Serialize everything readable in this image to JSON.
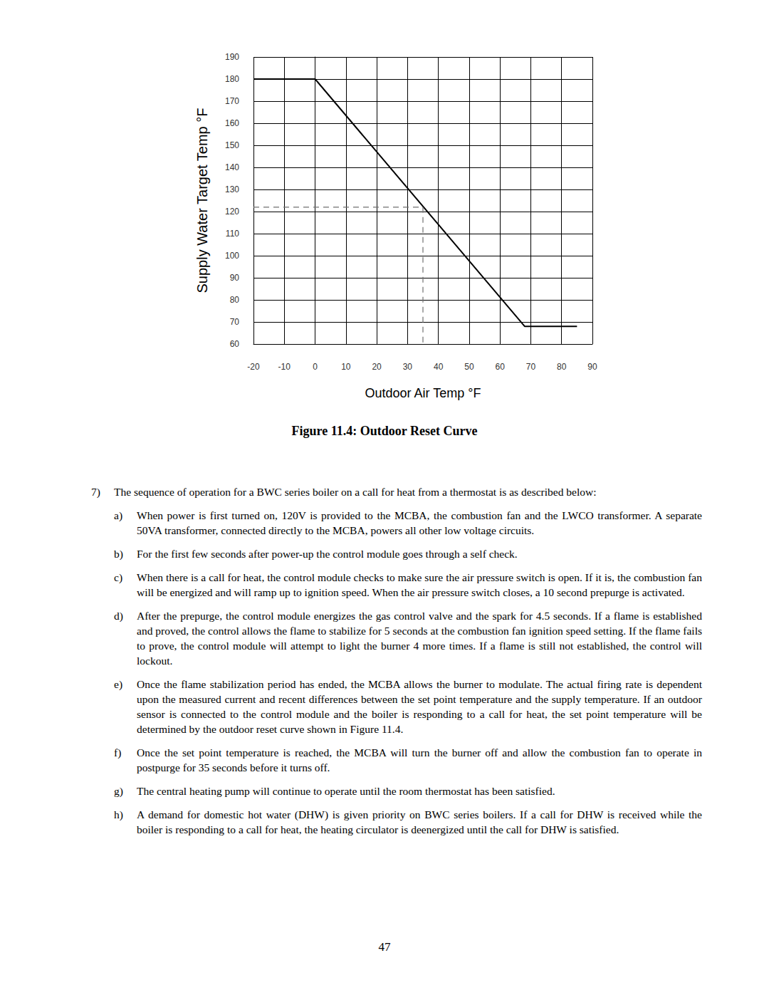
{
  "chart_data": {
    "type": "line",
    "xlabel": "Outdoor Air Temp °F",
    "ylabel": "Supply Water Target Temp °F",
    "xlim": [
      -20,
      90
    ],
    "xticks": [
      -20,
      -10,
      0,
      10,
      20,
      30,
      40,
      50,
      60,
      70,
      80,
      90
    ],
    "ylim": [
      60,
      190
    ],
    "yticks": [
      60,
      70,
      80,
      90,
      100,
      110,
      120,
      130,
      140,
      150,
      160,
      170,
      180,
      190
    ],
    "grid": true,
    "series": [
      {
        "x": [
          -20,
          0,
          68,
          85
        ],
        "values": [
          180,
          180,
          68,
          68
        ],
        "color": "#000000",
        "line_style": "solid"
      },
      {
        "x": [
          -20,
          35,
          35
        ],
        "values": [
          122,
          122,
          60
        ],
        "color": "#707070",
        "line_style": "dashed"
      }
    ]
  },
  "caption": "Figure 11.4:  Outdoor Reset Curve",
  "items": [
    {
      "label": "7)",
      "text": "The sequence of operation for a BWC series boiler on a call for heat from a thermostat is as described below:",
      "subitems": [
        {
          "label": "a)",
          "text": "When power is first turned on, 120V is provided to the MCBA, the combustion fan and the LWCO transformer.  A separate 50VA transformer, connected directly to the MCBA, powers all other low voltage circuits."
        },
        {
          "label": "b)",
          "text": "For the first few seconds after power-up the control module goes through a self check."
        },
        {
          "label": "c)",
          "text": "When there is a call for heat, the control module checks to make sure the air pressure switch is open.  If it is, the combustion fan  will be energized and will ramp up to ignition speed.  When the air pressure switch closes, a 10 second prepurge is activated."
        },
        {
          "label": "d)",
          "text": "After the prepurge, the control module energizes the gas control valve and the spark for 4.5 seconds.  If a flame is established and proved, the control allows the flame to stabilize for 5 seconds at the combustion fan ignition speed setting.  If the flame fails to prove, the control module will attempt to light the burner 4 more times.  If a flame is still not established, the control will lockout."
        },
        {
          "label": "e)",
          "text": "Once the flame stabilization period has ended, the MCBA allows the burner to modulate.  The actual firing rate is dependent upon the measured current and recent differences between the set point temperature and the supply temperature.  If an outdoor sensor is connected to the control module and the boiler is responding to a call for heat, the set point temperature will be determined by the outdoor reset curve shown in Figure 11.4."
        },
        {
          "label": "f)",
          "text": "Once the set point temperature is reached, the MCBA will turn the burner off and allow the combustion fan to operate in postpurge for 35 seconds before it turns off."
        },
        {
          "label": "g)",
          "text": "The central heating pump will continue to operate until the room thermostat has been satisfied."
        },
        {
          "label": "h)",
          "text": "A demand for domestic hot water (DHW) is given priority on BWC series boilers.  If a call for DHW is received while the boiler is responding to a call for heat, the heating circulator is deenergized until the call for DHW is satisfied."
        }
      ]
    }
  ],
  "page_number": "47"
}
